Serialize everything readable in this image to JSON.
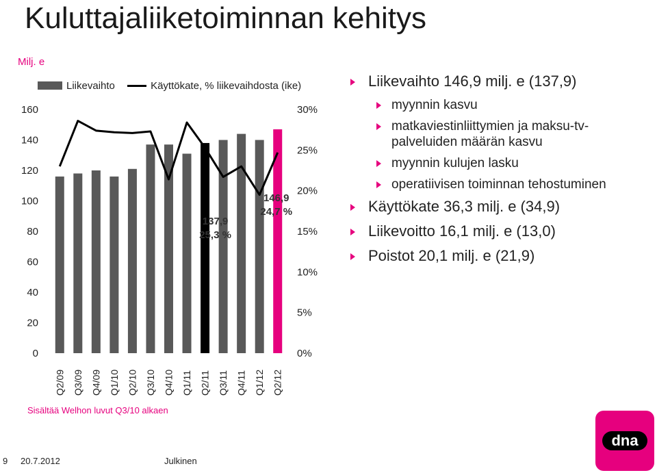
{
  "slide": {
    "title": "Kuluttajaliiketoiminnan kehitys",
    "unit": "Milj. e",
    "note": "Sisältää Welhon luvut Q3/10 alkaen",
    "footer": {
      "page": "9",
      "date": "20.7.2012",
      "classification": "Julkinen"
    },
    "logo": {
      "text": "dna",
      "icon": "dna-logo",
      "color": "#e6007e"
    }
  },
  "bullets": [
    {
      "level": 1,
      "text": "Liikevaihto 146,9 milj. e (137,9)"
    },
    {
      "level": 2,
      "text": "myynnin kasvu"
    },
    {
      "level": 2,
      "text": "matkaviestinliittymien ja maksu-tv-palveluiden määrän kasvu"
    },
    {
      "level": 2,
      "text": "myynnin kulujen lasku"
    },
    {
      "level": 2,
      "text": "operatiivisen toiminnan tehostuminen"
    },
    {
      "level": 1,
      "text": "Käyttökate 36,3 milj. e (34,9)"
    },
    {
      "level": 1,
      "text": "Liikevoitto 16,1 milj. e (13,0)"
    },
    {
      "level": 1,
      "text": "Poistot  20,1 milj. e (21,9)"
    }
  ],
  "chart_data": {
    "type": "bar",
    "categories": [
      "Q2/09",
      "Q3/09",
      "Q4/09",
      "Q1/10",
      "Q2/10",
      "Q3/10",
      "Q4/10",
      "Q1/11",
      "Q2/11",
      "Q3/11",
      "Q4/11",
      "Q1/12",
      "Q2/12"
    ],
    "series": [
      {
        "name": "Liikevaihto",
        "type": "bar",
        "axis": "left",
        "values": [
          116,
          118,
          120,
          116,
          121,
          137,
          137,
          131,
          138,
          140,
          144,
          140,
          147
        ],
        "colors": [
          "#595959",
          "#595959",
          "#595959",
          "#595959",
          "#595959",
          "#595959",
          "#595959",
          "#595959",
          "#000000",
          "#595959",
          "#595959",
          "#595959",
          "#e6007e"
        ]
      },
      {
        "name": "Käyttökate, % liikevaihdosta (ike)",
        "type": "line",
        "axis": "right",
        "values": [
          23.0,
          28.6,
          27.4,
          27.2,
          27.1,
          27.3,
          21.4,
          28.4,
          25.3,
          21.7,
          23.0,
          19.5,
          24.7
        ]
      }
    ],
    "y_left": {
      "min": 0,
      "max": 160,
      "ticks": [
        "0",
        "20",
        "40",
        "60",
        "80",
        "100",
        "120",
        "140",
        "160"
      ]
    },
    "y_right": {
      "min": 0,
      "max": 30,
      "ticks": [
        "0%",
        "5%",
        "10%",
        "15%",
        "20%",
        "25%",
        "30%"
      ]
    },
    "annotations": [
      {
        "category": "Q2/11",
        "label_value": "137,9",
        "label_pct": "25,3 %"
      },
      {
        "category": "Q2/12",
        "label_value": "146,9",
        "label_pct": "24,7 %"
      }
    ],
    "legend": "top",
    "grid": false
  }
}
